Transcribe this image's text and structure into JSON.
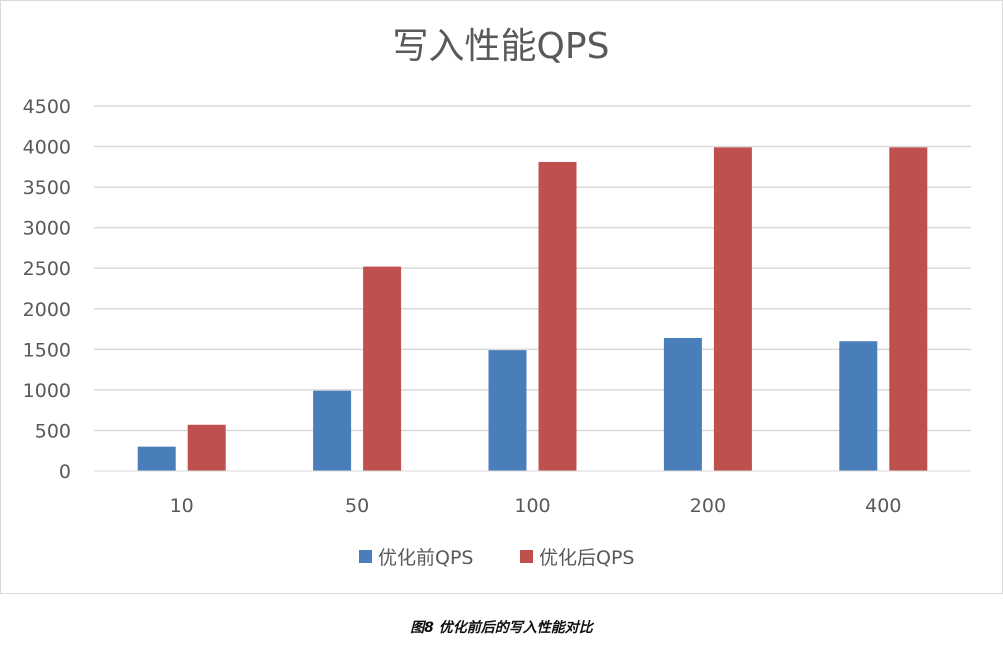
{
  "chart_data": {
    "type": "bar",
    "title": "写入性能QPS",
    "categories": [
      "10",
      "50",
      "100",
      "200",
      "400"
    ],
    "series": [
      {
        "name": "优化前QPS",
        "values": [
          300,
          990,
          1490,
          1640,
          1600
        ],
        "color": "#4a7ebb"
      },
      {
        "name": "优化后QPS",
        "values": [
          570,
          2520,
          3810,
          3990,
          3990
        ],
        "color": "#c0504d"
      }
    ],
    "y_ticks": [
      "0",
      "500",
      "1000",
      "1500",
      "2000",
      "2500",
      "3000",
      "3500",
      "4000",
      "4500"
    ],
    "ylim": [
      0,
      4500
    ],
    "grid": true,
    "legend_position": "bottom"
  },
  "caption": "图8  优化前后的写入性能对比"
}
